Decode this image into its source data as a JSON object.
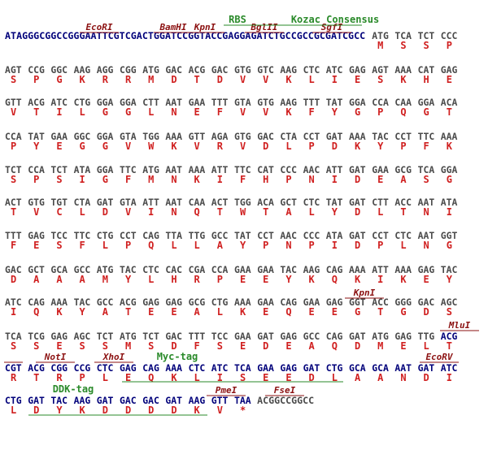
{
  "rows": [
    {
      "lead": "ATAGGGCGGCCGGGAATTCGTCGACTGGATCCGGTACCGAGGAGATCTGCCGCCGCGATCGCC",
      "codons": [
        "ATG",
        "TCA",
        "TCT",
        "CCC"
      ],
      "aa": [
        "M",
        "S",
        "S",
        "P"
      ]
    },
    {
      "codons": [
        "AGT",
        "CCG",
        "GGC",
        "AAG",
        "AGG",
        "CGG",
        "ATG",
        "GAC",
        "ACG",
        "GAC",
        "GTG",
        "GTC",
        "AAG",
        "CTC",
        "ATC",
        "GAG",
        "AGT",
        "AAA",
        "CAT",
        "GAG"
      ],
      "aa": [
        "S",
        "P",
        "G",
        "K",
        "R",
        "R",
        "M",
        "D",
        "T",
        "D",
        "V",
        "V",
        "K",
        "L",
        "I",
        "E",
        "S",
        "K",
        "H",
        "E"
      ]
    },
    {
      "codons": [
        "GTT",
        "ACG",
        "ATC",
        "CTG",
        "GGA",
        "GGA",
        "CTT",
        "AAT",
        "GAA",
        "TTT",
        "GTA",
        "GTG",
        "AAG",
        "TTT",
        "TAT",
        "GGA",
        "CCA",
        "CAA",
        "GGA",
        "ACA"
      ],
      "aa": [
        "V",
        "T",
        "I",
        "L",
        "G",
        "G",
        "L",
        "N",
        "E",
        "F",
        "V",
        "V",
        "K",
        "F",
        "Y",
        "G",
        "P",
        "Q",
        "G",
        "T"
      ]
    },
    {
      "codons": [
        "CCA",
        "TAT",
        "GAA",
        "GGC",
        "GGA",
        "GTA",
        "TGG",
        "AAA",
        "GTT",
        "AGA",
        "GTG",
        "GAC",
        "CTA",
        "CCT",
        "GAT",
        "AAA",
        "TAC",
        "CCT",
        "TTC",
        "AAA"
      ],
      "aa": [
        "P",
        "Y",
        "E",
        "G",
        "G",
        "V",
        "W",
        "K",
        "V",
        "R",
        "V",
        "D",
        "L",
        "P",
        "D",
        "K",
        "Y",
        "P",
        "F",
        "K"
      ]
    },
    {
      "codons": [
        "TCT",
        "CCA",
        "TCT",
        "ATA",
        "GGA",
        "TTC",
        "ATG",
        "AAT",
        "AAA",
        "ATT",
        "TTC",
        "CAT",
        "CCC",
        "AAC",
        "ATT",
        "GAT",
        "GAA",
        "GCG",
        "TCA",
        "GGA"
      ],
      "aa": [
        "S",
        "P",
        "S",
        "I",
        "G",
        "F",
        "M",
        "N",
        "K",
        "I",
        "F",
        "H",
        "P",
        "N",
        "I",
        "D",
        "E",
        "A",
        "S",
        "G"
      ]
    },
    {
      "codons": [
        "ACT",
        "GTG",
        "TGT",
        "CTA",
        "GAT",
        "GTA",
        "ATT",
        "AAT",
        "CAA",
        "ACT",
        "TGG",
        "ACA",
        "GCT",
        "CTC",
        "TAT",
        "GAT",
        "CTT",
        "ACC",
        "AAT",
        "ATA"
      ],
      "aa": [
        "T",
        "V",
        "C",
        "L",
        "D",
        "V",
        "I",
        "N",
        "Q",
        "T",
        "W",
        "T",
        "A",
        "L",
        "Y",
        "D",
        "L",
        "T",
        "N",
        "I"
      ]
    },
    {
      "codons": [
        "TTT",
        "GAG",
        "TCC",
        "TTC",
        "CTG",
        "CCT",
        "CAG",
        "TTA",
        "TTG",
        "GCC",
        "TAT",
        "CCT",
        "AAC",
        "CCC",
        "ATA",
        "GAT",
        "CCT",
        "CTC",
        "AAT",
        "GGT"
      ],
      "aa": [
        "F",
        "E",
        "S",
        "F",
        "L",
        "P",
        "Q",
        "L",
        "L",
        "A",
        "Y",
        "P",
        "N",
        "P",
        "I",
        "D",
        "P",
        "L",
        "N",
        "G"
      ]
    },
    {
      "codons": [
        "GAC",
        "GCT",
        "GCA",
        "GCC",
        "ATG",
        "TAC",
        "CTC",
        "CAC",
        "CGA",
        "CCA",
        "GAA",
        "GAA",
        "TAC",
        "AAG",
        "CAG",
        "AAA",
        "ATT",
        "AAA",
        "GAG",
        "TAC"
      ],
      "aa": [
        "D",
        "A",
        "A",
        "A",
        "M",
        "Y",
        "L",
        "H",
        "R",
        "P",
        "E",
        "E",
        "Y",
        "K",
        "Q",
        "K",
        "I",
        "K",
        "E",
        "Y"
      ]
    },
    {
      "codons": [
        "ATC",
        "CAG",
        "AAA",
        "TAC",
        "GCC",
        "ACG",
        "GAG",
        "GAG",
        "GCG",
        "CTG",
        "AAA",
        "GAA",
        "CAG",
        "GAA",
        "GAG",
        "GGT",
        "ACC",
        "GGG",
        "GAC",
        "AGC"
      ],
      "aa": [
        "I",
        "Q",
        "K",
        "Y",
        "A",
        "T",
        "E",
        "E",
        "A",
        "L",
        "K",
        "E",
        "Q",
        "E",
        "E",
        "G",
        "T",
        "G",
        "D",
        "S"
      ]
    },
    {
      "codons": [
        "TCA",
        "TCG",
        "GAG",
        "AGC",
        "TCT",
        "ATG",
        "TCT",
        "GAC",
        "TTT",
        "TCC",
        "GAA",
        "GAT",
        "GAG",
        "GCC",
        "CAG",
        "GAT",
        "ATG",
        "GAG",
        "TTG",
        "ACG"
      ],
      "aa": [
        "S",
        "S",
        "E",
        "S",
        "S",
        "M",
        "S",
        "D",
        "F",
        "S",
        "E",
        "D",
        "E",
        "A",
        "Q",
        "D",
        "M",
        "E",
        "L",
        "T"
      ]
    },
    {
      "codons": [
        "CGT",
        "ACG",
        "CGG",
        "CCG",
        "CTC",
        "GAG",
        "CAG",
        "AAA",
        "CTC",
        "ATC",
        "TCA",
        "GAA",
        "GAG",
        "GAT",
        "CTG",
        "GCA",
        "GCA",
        "AAT",
        "GAT",
        "ATC"
      ],
      "aa": [
        "R",
        "T",
        "R",
        "P",
        "L",
        "E",
        "Q",
        "K",
        "L",
        "I",
        "S",
        "E",
        "E",
        "D",
        "L",
        "A",
        "A",
        "N",
        "D",
        "I"
      ]
    },
    {
      "codons": [
        "CTG",
        "GAT",
        "TAC",
        "AAG",
        "GAT",
        "GAC",
        "GAC",
        "GAT",
        "AAG",
        "GTT",
        "TAA"
      ],
      "aa": [
        "L",
        "D",
        "Y",
        "K",
        "D",
        "D",
        "D",
        "D",
        "K",
        "V",
        "*"
      ],
      "tail": "ACGGCCGGCC"
    }
  ],
  "sites": [
    "EcoRI",
    "BamHI",
    "KpnI",
    "BglII",
    "SgfI",
    "KpnI",
    "MluI",
    "NotI",
    "XhoI",
    "EcoRV",
    "PmeI",
    "FseI"
  ],
  "tags": [
    "RBS",
    "Kozac Consensus",
    "Myc-tag",
    "DDK-tag"
  ]
}
